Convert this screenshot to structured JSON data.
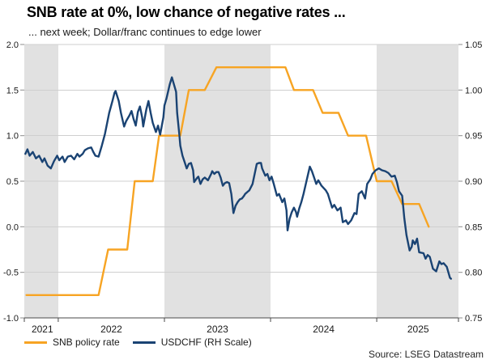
{
  "header": {
    "title": "SNB rate at 0%, low chance of negative rates ...",
    "subtitle": "... next week; Dollar/franc continues to edge lower"
  },
  "source": "Source: LSEG Datastream",
  "legend": [
    {
      "label": "SNB policy rate"
    },
    {
      "label": "USDCHF (RH Scale)"
    }
  ],
  "chart_data": {
    "type": "line",
    "x_unit": "fractional_year",
    "x_domain": [
      2021.68,
      2025.77
    ],
    "grid": true,
    "colors": {
      "band": "#e1e1e1",
      "grid": "#cfcfcf",
      "axis": "#4a4a4a",
      "tick": "#8c8c8c",
      "text": "#1a1a1a"
    },
    "shaded_bands": [
      [
        2021.68,
        2022.0
      ],
      [
        2023.0,
        2024.0
      ],
      [
        2025.0,
        2025.77
      ]
    ],
    "left_axis": {
      "lim": [
        -1.0,
        2.0
      ],
      "values": [
        2.0,
        1.5,
        1.0,
        0.5,
        0.0,
        -0.5,
        -1.0
      ],
      "tick_labels": [
        "2.0",
        "1.5",
        "1.0",
        "0.5",
        "0.0",
        "-0.5",
        "-1.0"
      ]
    },
    "right_axis": {
      "lim": [
        0.75,
        1.05
      ],
      "values": [
        1.05,
        1.0,
        0.95,
        0.9,
        0.85,
        0.8,
        0.75
      ],
      "tick_labels": [
        "1.05",
        "1.00",
        "0.95",
        "0.90",
        "0.85",
        "0.80",
        "0.75"
      ]
    },
    "x_axis": {
      "tick_years": [
        2022,
        2023,
        2024,
        2025
      ],
      "labels": [
        {
          "text": "2021",
          "pos": 2021.85
        },
        {
          "text": "2022",
          "pos": 2022.5
        },
        {
          "text": "2023",
          "pos": 2023.5
        },
        {
          "text": "2024",
          "pos": 2024.5
        },
        {
          "text": "2025",
          "pos": 2025.39
        }
      ]
    },
    "series": [
      {
        "id": "snb-policy-rate",
        "name": "SNB policy rate",
        "axis": "left",
        "color": "#f7a423",
        "points": [
          [
            2021.7,
            -0.75
          ],
          [
            2022.38,
            -0.75
          ],
          [
            2022.47,
            -0.25
          ],
          [
            2022.65,
            -0.25
          ],
          [
            2022.72,
            0.5
          ],
          [
            2022.89,
            0.5
          ],
          [
            2022.95,
            1.0
          ],
          [
            2023.15,
            1.0
          ],
          [
            2023.23,
            1.5
          ],
          [
            2023.38,
            1.5
          ],
          [
            2023.49,
            1.75
          ],
          [
            2024.14,
            1.75
          ],
          [
            2024.22,
            1.5
          ],
          [
            2024.4,
            1.5
          ],
          [
            2024.49,
            1.25
          ],
          [
            2024.64,
            1.25
          ],
          [
            2024.73,
            1.0
          ],
          [
            2024.9,
            1.0
          ],
          [
            2025.0,
            0.5
          ],
          [
            2025.14,
            0.5
          ],
          [
            2025.24,
            0.25
          ],
          [
            2025.4,
            0.25
          ],
          [
            2025.49,
            0.0
          ]
        ]
      },
      {
        "id": "usdchf",
        "name": "USDCHF (RH Scale)",
        "axis": "right",
        "color": "#1a4373",
        "points": [
          [
            2021.69,
            0.93
          ],
          [
            2021.71,
            0.935
          ],
          [
            2021.73,
            0.928
          ],
          [
            2021.76,
            0.932
          ],
          [
            2021.79,
            0.925
          ],
          [
            2021.82,
            0.928
          ],
          [
            2021.85,
            0.921
          ],
          [
            2021.87,
            0.925
          ],
          [
            2021.9,
            0.917
          ],
          [
            2021.93,
            0.914
          ],
          [
            2021.96,
            0.922
          ],
          [
            2021.99,
            0.928
          ],
          [
            2022.01,
            0.923
          ],
          [
            2022.04,
            0.927
          ],
          [
            2022.06,
            0.921
          ],
          [
            2022.09,
            0.927
          ],
          [
            2022.12,
            0.928
          ],
          [
            2022.15,
            0.924
          ],
          [
            2022.18,
            0.93
          ],
          [
            2022.2,
            0.927
          ],
          [
            2022.23,
            0.93
          ],
          [
            2022.25,
            0.934
          ],
          [
            2022.28,
            0.936
          ],
          [
            2022.31,
            0.937
          ],
          [
            2022.33,
            0.932
          ],
          [
            2022.35,
            0.928
          ],
          [
            2022.38,
            0.927
          ],
          [
            2022.41,
            0.939
          ],
          [
            2022.44,
            0.952
          ],
          [
            2022.48,
            0.975
          ],
          [
            2022.51,
            0.988
          ],
          [
            2022.53,
            0.997
          ],
          [
            2022.54,
            0.999
          ],
          [
            2022.57,
            0.988
          ],
          [
            2022.59,
            0.975
          ],
          [
            2022.62,
            0.96
          ],
          [
            2022.64,
            0.966
          ],
          [
            2022.67,
            0.972
          ],
          [
            2022.69,
            0.977
          ],
          [
            2022.71,
            0.968
          ],
          [
            2022.73,
            0.961
          ],
          [
            2022.75,
            0.976
          ],
          [
            2022.77,
            0.982
          ],
          [
            2022.79,
            0.97
          ],
          [
            2022.8,
            0.96
          ],
          [
            2022.83,
            0.979
          ],
          [
            2022.85,
            0.988
          ],
          [
            2022.87,
            0.975
          ],
          [
            2022.89,
            0.964
          ],
          [
            2022.92,
            0.954
          ],
          [
            2022.94,
            0.961
          ],
          [
            2022.96,
            0.951
          ],
          [
            2022.99,
            0.97
          ],
          [
            2023.0,
            0.983
          ],
          [
            2023.02,
            0.991
          ],
          [
            2023.05,
            1.006
          ],
          [
            2023.07,
            1.014
          ],
          [
            2023.09,
            1.006
          ],
          [
            2023.11,
            0.998
          ],
          [
            2023.12,
            0.975
          ],
          [
            2023.14,
            0.952
          ],
          [
            2023.15,
            0.939
          ],
          [
            2023.17,
            0.928
          ],
          [
            2023.19,
            0.921
          ],
          [
            2023.21,
            0.914
          ],
          [
            2023.23,
            0.919
          ],
          [
            2023.25,
            0.92
          ],
          [
            2023.27,
            0.912
          ],
          [
            2023.28,
            0.899
          ],
          [
            2023.31,
            0.904
          ],
          [
            2023.32,
            0.905
          ],
          [
            2023.34,
            0.897
          ],
          [
            2023.36,
            0.902
          ],
          [
            2023.38,
            0.904
          ],
          [
            2023.4,
            0.902
          ],
          [
            2023.41,
            0.901
          ],
          [
            2023.44,
            0.908
          ],
          [
            2023.45,
            0.911
          ],
          [
            2023.47,
            0.908
          ],
          [
            2023.49,
            0.91
          ],
          [
            2023.51,
            0.91
          ],
          [
            2023.53,
            0.904
          ],
          [
            2023.55,
            0.895
          ],
          [
            2023.57,
            0.898
          ],
          [
            2023.59,
            0.899
          ],
          [
            2023.61,
            0.898
          ],
          [
            2023.63,
            0.886
          ],
          [
            2023.65,
            0.865
          ],
          [
            2023.67,
            0.873
          ],
          [
            2023.69,
            0.877
          ],
          [
            2023.71,
            0.88
          ],
          [
            2023.73,
            0.881
          ],
          [
            2023.75,
            0.884
          ],
          [
            2023.76,
            0.886
          ],
          [
            2023.79,
            0.889
          ],
          [
            2023.8,
            0.89
          ],
          [
            2023.83,
            0.897
          ],
          [
            2023.85,
            0.908
          ],
          [
            2023.87,
            0.919
          ],
          [
            2023.89,
            0.92
          ],
          [
            2023.91,
            0.92
          ],
          [
            2023.92,
            0.914
          ],
          [
            2023.95,
            0.906
          ],
          [
            2023.97,
            0.908
          ],
          [
            2023.99,
            0.901
          ],
          [
            2024.01,
            0.905
          ],
          [
            2024.03,
            0.897
          ],
          [
            2024.06,
            0.884
          ],
          [
            2024.08,
            0.886
          ],
          [
            2024.11,
            0.877
          ],
          [
            2024.13,
            0.881
          ],
          [
            2024.15,
            0.868
          ],
          [
            2024.16,
            0.846
          ],
          [
            2024.18,
            0.859
          ],
          [
            2024.2,
            0.866
          ],
          [
            2024.22,
            0.871
          ],
          [
            2024.24,
            0.866
          ],
          [
            2024.25,
            0.861
          ],
          [
            2024.27,
            0.87
          ],
          [
            2024.29,
            0.877
          ],
          [
            2024.31,
            0.886
          ],
          [
            2024.34,
            0.901
          ],
          [
            2024.37,
            0.916
          ],
          [
            2024.39,
            0.911
          ],
          [
            2024.41,
            0.904
          ],
          [
            2024.43,
            0.897
          ],
          [
            2024.45,
            0.901
          ],
          [
            2024.48,
            0.895
          ],
          [
            2024.52,
            0.89
          ],
          [
            2024.54,
            0.886
          ],
          [
            2024.58,
            0.871
          ],
          [
            2024.6,
            0.874
          ],
          [
            2024.63,
            0.868
          ],
          [
            2024.66,
            0.871
          ],
          [
            2024.68,
            0.855
          ],
          [
            2024.71,
            0.857
          ],
          [
            2024.73,
            0.853
          ],
          [
            2024.76,
            0.857
          ],
          [
            2024.79,
            0.865
          ],
          [
            2024.81,
            0.864
          ],
          [
            2024.83,
            0.886
          ],
          [
            2024.86,
            0.889
          ],
          [
            2024.89,
            0.881
          ],
          [
            2024.91,
            0.897
          ],
          [
            2024.94,
            0.902
          ],
          [
            2024.96,
            0.908
          ],
          [
            2024.99,
            0.912
          ],
          [
            2025.02,
            0.914
          ],
          [
            2025.05,
            0.912
          ],
          [
            2025.08,
            0.911
          ],
          [
            2025.11,
            0.909
          ],
          [
            2025.14,
            0.905
          ],
          [
            2025.17,
            0.906
          ],
          [
            2025.19,
            0.899
          ],
          [
            2025.21,
            0.889
          ],
          [
            2025.24,
            0.884
          ],
          [
            2025.26,
            0.859
          ],
          [
            2025.28,
            0.841
          ],
          [
            2025.31,
            0.824
          ],
          [
            2025.33,
            0.828
          ],
          [
            2025.34,
            0.835
          ],
          [
            2025.36,
            0.831
          ],
          [
            2025.38,
            0.837
          ],
          [
            2025.4,
            0.822
          ],
          [
            2025.44,
            0.821
          ],
          [
            2025.46,
            0.815
          ],
          [
            2025.48,
            0.819
          ],
          [
            2025.5,
            0.817
          ],
          [
            2025.53,
            0.804
          ],
          [
            2025.56,
            0.801
          ],
          [
            2025.59,
            0.812
          ],
          [
            2025.61,
            0.809
          ],
          [
            2025.63,
            0.81
          ],
          [
            2025.66,
            0.806
          ],
          [
            2025.69,
            0.794
          ],
          [
            2025.7,
            0.793
          ]
        ]
      }
    ]
  }
}
